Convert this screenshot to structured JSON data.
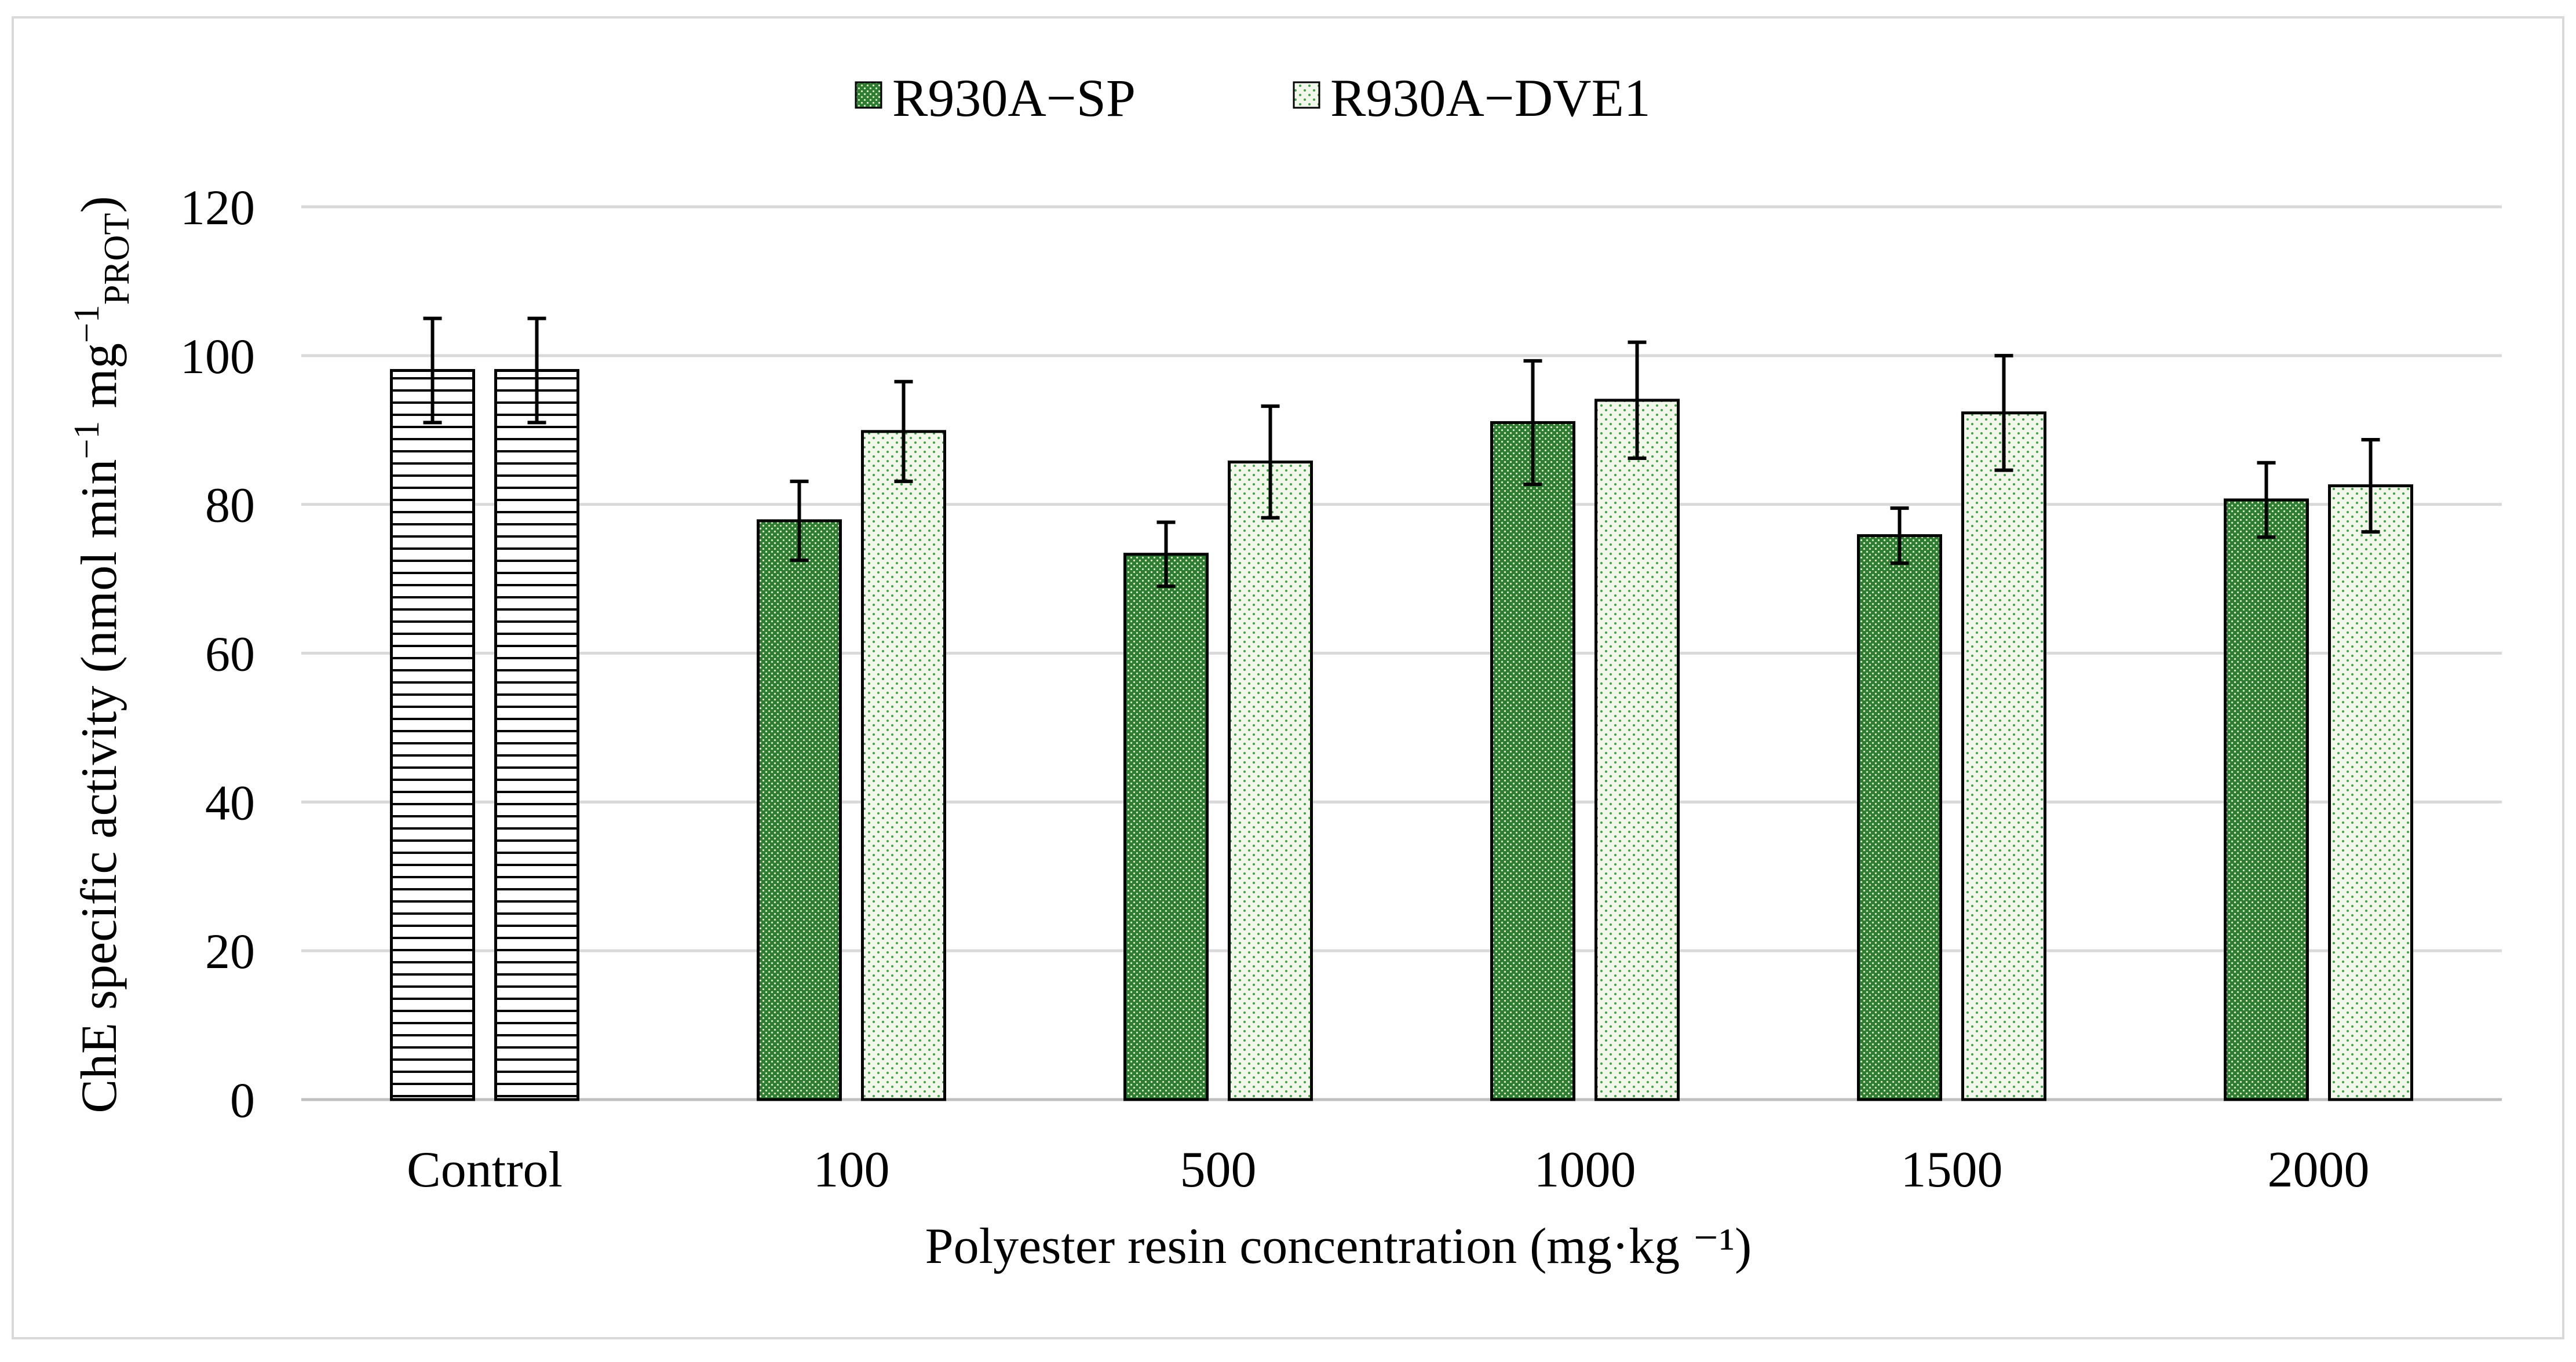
{
  "chart_data": {
    "type": "bar",
    "title": "",
    "xlabel": "Polyester resin concentration (mg·kg ⁻¹)",
    "ylabel": {
      "main": "ChE specific activity (nmol min",
      "sup1": "−1",
      "mid": " mg",
      "sup2": "−1",
      "sub": "PROT",
      "end": ")"
    },
    "categories": [
      "Control",
      "100",
      "500",
      "1000",
      "1500",
      "2000"
    ],
    "ylim": [
      0,
      120
    ],
    "yticks": [
      0,
      20,
      40,
      60,
      80,
      100,
      120
    ],
    "grid": true,
    "legend_position": "top-center",
    "series": [
      {
        "name": "R930A−SP",
        "pattern": "dense-dots",
        "fill_color": "#2e7d32",
        "values": [
          98,
          77.8,
          73.3,
          91,
          75.8,
          80.6
        ],
        "errors": [
          7,
          5.3,
          4.3,
          8.3,
          3.7,
          5
        ]
      },
      {
        "name": "R930A−DVE1",
        "pattern": "sparse-dots",
        "fill_color": "#e8f5e9",
        "values": [
          98,
          89.8,
          85.7,
          94,
          92.3,
          82.5
        ],
        "errors": [
          7,
          6.7,
          7.5,
          7.8,
          7.7,
          6.2
        ]
      }
    ],
    "control_pattern": "horizontal-stripes",
    "colors": {
      "grid": "#d9d9d9",
      "axis": "#bfbfbf",
      "bar_edge": "#000000",
      "dark_green": "#2e7d32",
      "dot_green": "#43a047"
    }
  }
}
